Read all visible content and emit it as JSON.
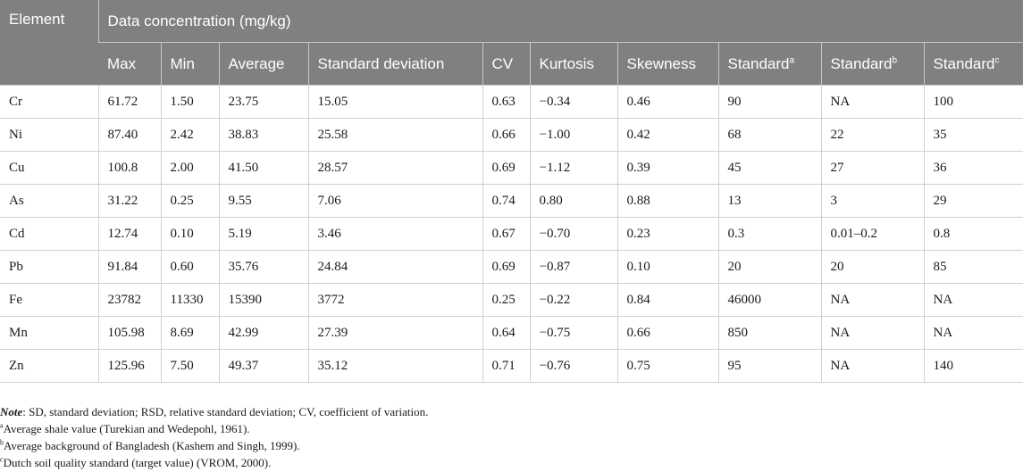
{
  "table": {
    "element_header": "Element",
    "group_header": "Data concentration (mg/kg)",
    "columns": [
      {
        "label": "Max",
        "sup": ""
      },
      {
        "label": "Min",
        "sup": ""
      },
      {
        "label": "Average",
        "sup": ""
      },
      {
        "label": "Standard deviation",
        "sup": ""
      },
      {
        "label": "CV",
        "sup": ""
      },
      {
        "label": "Kurtosis",
        "sup": ""
      },
      {
        "label": "Skewness",
        "sup": ""
      },
      {
        "label": "Standard",
        "sup": "a"
      },
      {
        "label": "Standard",
        "sup": "b"
      },
      {
        "label": "Standard",
        "sup": "c"
      }
    ],
    "rows": [
      [
        "Cr",
        "61.72",
        "1.50",
        "23.75",
        "15.05",
        "0.63",
        "−0.34",
        "0.46",
        "90",
        "NA",
        "100"
      ],
      [
        "Ni",
        "87.40",
        "2.42",
        "38.83",
        "25.58",
        "0.66",
        "−1.00",
        "0.42",
        "68",
        "22",
        "35"
      ],
      [
        "Cu",
        "100.8",
        "2.00",
        "41.50",
        "28.57",
        "0.69",
        "−1.12",
        "0.39",
        "45",
        "27",
        "36"
      ],
      [
        "As",
        "31.22",
        "0.25",
        "9.55",
        "7.06",
        "0.74",
        "0.80",
        "0.88",
        "13",
        "3",
        "29"
      ],
      [
        "Cd",
        "12.74",
        "0.10",
        "5.19",
        "3.46",
        "0.67",
        "−0.70",
        "0.23",
        "0.3",
        "0.01–0.2",
        "0.8"
      ],
      [
        "Pb",
        "91.84",
        "0.60",
        "35.76",
        "24.84",
        "0.69",
        "−0.87",
        "0.10",
        "20",
        "20",
        "85"
      ],
      [
        "Fe",
        "23782",
        "11330",
        "15390",
        "3772",
        "0.25",
        "−0.22",
        "0.84",
        "46000",
        "NA",
        "NA"
      ],
      [
        "Mn",
        "105.98",
        "8.69",
        "42.99",
        "27.39",
        "0.64",
        "−0.75",
        "0.66",
        "850",
        "NA",
        "NA"
      ],
      [
        "Zn",
        "125.96",
        "7.50",
        "49.37",
        "35.12",
        "0.71",
        "−0.76",
        "0.75",
        "95",
        "NA",
        "140"
      ]
    ]
  },
  "notes": {
    "note_label": "Note",
    "note_text": ": SD, standard deviation; RSD, relative standard deviation; CV, coefficient of variation.",
    "footnotes": [
      {
        "mark": "a",
        "text": "Average shale value (Turekian and Wedepohl, 1961)."
      },
      {
        "mark": "b",
        "text": "Average background of Bangladesh (Kashem and Singh, 1999)."
      },
      {
        "mark": "c",
        "text": "Dutch soil quality standard (target value) (VROM, 2000)."
      }
    ]
  }
}
